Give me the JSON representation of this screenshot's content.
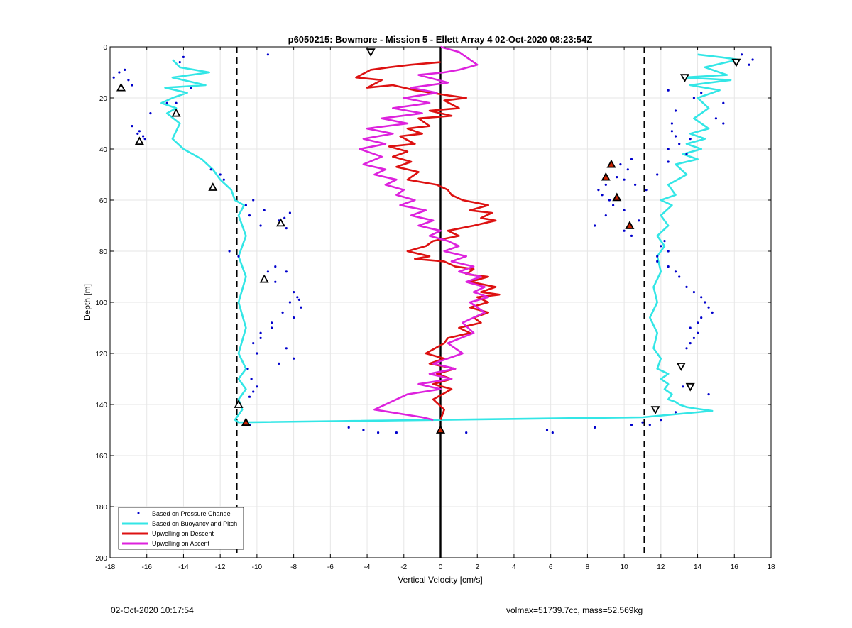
{
  "chart_data": {
    "type": "scatter",
    "title": "p6050215: Bowmore - Mission 5 - Ellett Array 4 02-Oct-2020 08:23:54Z",
    "xlabel": "Vertical Velocity [cm/s]",
    "ylabel": "Depth [m]",
    "xlim": [
      -18,
      18
    ],
    "ylim": [
      0,
      200
    ],
    "y_reversed": true,
    "xticks": [
      -18,
      -16,
      -14,
      -12,
      -10,
      -8,
      -6,
      -4,
      -2,
      0,
      2,
      4,
      6,
      8,
      10,
      12,
      14,
      16,
      18
    ],
    "yticks": [
      0,
      20,
      40,
      60,
      80,
      100,
      120,
      140,
      160,
      180,
      200
    ],
    "grid": true,
    "legend_position": "bottom-left",
    "legend": [
      "Based on Pressure Change",
      "Based on Buoyancy and Pitch",
      "Upwelling on Descent",
      "Upwelling on Ascent"
    ],
    "colors": {
      "pressure": "#0000cc",
      "buoyancy": "#33e6e6",
      "descent": "#dd1111",
      "ascent": "#dd22dd",
      "grid": "#e6e6e6"
    },
    "vlines": [
      {
        "x": -11.1,
        "style": "dashed"
      },
      {
        "x": 11.1,
        "style": "dashed"
      },
      {
        "x": 0,
        "style": "solid"
      }
    ],
    "series": [
      {
        "name": "Based on Buoyancy and Pitch",
        "style": "line",
        "x": [
          14.0,
          15.2,
          16.2,
          14.4,
          15.6,
          13.2,
          15.8,
          13.6,
          15.2,
          14.0,
          14.6,
          13.8,
          14.6,
          13.6,
          14.4,
          13.4,
          14.2,
          13.2,
          14.0,
          12.8,
          13.4,
          12.4,
          12.8,
          12.0,
          12.6,
          12.0,
          12.4,
          11.8,
          12.2,
          11.8,
          12.0,
          11.6,
          11.8,
          11.4,
          11.8,
          11.6,
          12.0,
          11.8,
          12.4,
          12.0,
          12.4,
          12.2,
          12.6,
          12.4,
          12.8,
          13.0,
          13.4,
          13.8,
          14.8,
          11.0,
          -11.0,
          -11.2,
          -10.8,
          -11.0,
          -10.6,
          -11.0,
          -10.6,
          -11.0,
          -10.6,
          -11.0,
          -10.6,
          -11.0,
          -10.6,
          -11.0,
          -10.7,
          -11.2,
          -11.4,
          -12.0,
          -12.4,
          -13.0,
          -14.0,
          -14.6,
          -14.2,
          -14.9,
          -14.4,
          -15.2,
          -14.6,
          -13.8,
          -15.0,
          -12.8,
          -14.6,
          -12.6,
          -14.2,
          -14.6
        ],
        "y": [
          3,
          4,
          5,
          8,
          11,
          12,
          13,
          15,
          17,
          20,
          24,
          28,
          32,
          34,
          36,
          38,
          40,
          42,
          44,
          46,
          50,
          54,
          58,
          60,
          62,
          66,
          70,
          74,
          78,
          82,
          88,
          94,
          100,
          106,
          112,
          118,
          122,
          126,
          128,
          130,
          132,
          134,
          136,
          138,
          139,
          140,
          141,
          141.5,
          142.5,
          145,
          147,
          146,
          142,
          138,
          134,
          130,
          126,
          120,
          110,
          100,
          90,
          82,
          74,
          66,
          62,
          60,
          56,
          52,
          48,
          44,
          40,
          36,
          30,
          26,
          24,
          22,
          20,
          18,
          16,
          15,
          12,
          10,
          8,
          5
        ]
      },
      {
        "name": "Upwelling on Descent",
        "style": "line",
        "x": [
          0.0,
          -1.6,
          -2.8,
          -3.8,
          -4.6,
          -3.2,
          -4.0,
          -2.6,
          -1.4,
          0.4,
          1.4,
          0.2,
          1.0,
          -0.6,
          0.6,
          -1.2,
          -0.6,
          -1.8,
          -1.0,
          -2.2,
          -1.4,
          -2.8,
          -1.8,
          -2.6,
          -1.6,
          -2.4,
          -1.2,
          -1.8,
          -0.2,
          0.4,
          0.6,
          1.2,
          2.6,
          1.6,
          2.8,
          2.2,
          3.0,
          1.8,
          0.4,
          1.0,
          -0.4,
          -0.8,
          -1.8,
          -0.6,
          -1.4,
          0.2,
          0.8,
          1.8,
          1.4,
          2.6,
          1.6,
          3.0,
          2.2,
          3.2,
          2.0,
          2.6,
          1.6,
          2.6,
          1.8,
          2.2,
          1.0,
          1.6,
          0.4,
          0.2,
          -0.8,
          0.2,
          -0.6,
          0.8,
          -0.2,
          0.6,
          -0.4,
          0.6,
          -0.4,
          0.2,
          0.0
        ],
        "y": [
          6,
          7,
          8,
          9,
          12,
          13,
          16,
          15,
          17,
          19,
          20,
          21,
          24,
          25,
          27,
          28,
          31,
          32,
          34,
          35,
          38,
          39,
          41,
          43,
          45,
          47,
          49,
          52,
          54,
          56,
          58,
          60,
          62,
          64,
          65,
          67,
          68,
          70,
          72,
          74,
          76,
          78,
          80,
          82,
          83,
          84,
          86,
          87,
          89,
          90,
          92,
          94,
          96,
          97,
          98,
          100,
          102,
          104,
          106,
          108,
          110,
          112,
          114,
          116,
          120,
          122,
          124,
          126,
          128,
          130,
          132,
          134,
          138,
          142,
          146
        ]
      },
      {
        "name": "Upwelling on Ascent",
        "style": "line",
        "x": [
          0.0,
          1.0,
          2.0,
          1.0,
          0.2,
          -1.2,
          0.4,
          -1.6,
          -0.2,
          -2.0,
          -0.6,
          -2.6,
          -1.0,
          -3.2,
          -1.8,
          -4.0,
          -2.6,
          -4.2,
          -3.0,
          -4.4,
          -3.2,
          -4.2,
          -3.0,
          -3.6,
          -2.4,
          -3.0,
          -2.0,
          -2.4,
          -1.4,
          -2.2,
          -0.8,
          -1.6,
          -0.4,
          -1.2,
          0.0,
          -0.6,
          0.4,
          1.0,
          0.2,
          1.4,
          0.6,
          1.8,
          1.0,
          2.2,
          1.4,
          2.4,
          1.8,
          2.6,
          1.6,
          2.4,
          1.2,
          1.8,
          0.4,
          1.2,
          -0.4,
          0.8,
          -0.6,
          0.6,
          -1.2,
          0.0,
          -1.8,
          -3.6,
          -1.0,
          -0.4
        ],
        "y": [
          0,
          2,
          7,
          9,
          10,
          11,
          14,
          16,
          18,
          20,
          22,
          24,
          26,
          28,
          30,
          32,
          34,
          36,
          38,
          40,
          43,
          46,
          48,
          50,
          52,
          54,
          56,
          58,
          60,
          62,
          64,
          66,
          68,
          70,
          72,
          74,
          76,
          78,
          80,
          82,
          84,
          86,
          88,
          90,
          92,
          94,
          96,
          98,
          100,
          104,
          108,
          112,
          116,
          120,
          124,
          126,
          128,
          130,
          132,
          134,
          136,
          142,
          145,
          146
        ]
      },
      {
        "name": "Based on Pressure Change",
        "style": "points",
        "x": [
          -17.8,
          -17.5,
          -17.2,
          -16.8,
          -16.4,
          -16.2,
          -15.8,
          -14.2,
          -14.0,
          -13.6,
          -16.1,
          -16.5,
          -14.9,
          -10.2,
          -10.6,
          -10.4,
          -9.6,
          -9.8,
          -8.8,
          -8.5,
          -8.2,
          -8.4,
          -9.0,
          -9.4,
          -9.6,
          -9.0,
          -8.4,
          -8.0,
          -7.8,
          -8.2,
          -8.6,
          -9.2,
          -9.8,
          -10.2,
          -10.5,
          -10.3,
          -9.2,
          -8.0,
          -7.6,
          -7.7,
          -8.4,
          -8.0,
          -8.8,
          -9.8,
          -10.0,
          -10.2,
          -10.4,
          -10.0,
          -11.5,
          -11.0,
          -12.5,
          -12.0,
          -11.8,
          -10.4,
          -5.0,
          -4.2,
          -3.4,
          -2.4,
          1.4,
          5.8,
          6.1,
          8.4,
          10.4,
          11.0,
          12.8,
          13.2,
          14.6,
          15.4,
          16.8,
          17.0,
          16.4,
          14.2,
          13.8,
          12.4,
          12.8,
          12.6,
          12.4,
          13.0,
          13.6,
          15.0,
          15.4,
          13.4,
          12.6,
          12.4,
          12.8,
          12.2,
          11.8,
          12.4,
          12.8,
          13.0,
          13.4,
          13.8,
          14.2,
          14.4,
          14.6,
          14.8,
          14.2,
          14.0,
          13.6,
          14.0,
          13.8,
          13.6,
          13.4,
          12.4,
          12.0,
          11.8,
          10.4,
          10.2,
          9.8,
          10.0,
          9.6,
          9.0,
          8.6,
          8.8,
          9.2,
          10.0,
          9.4,
          9.0,
          8.4,
          10.0,
          10.4,
          10.8,
          11.2,
          10.6,
          11.8,
          11.4,
          12.0,
          -14.4,
          -16.8,
          -17.0,
          -9.4,
          -3.8
        ],
        "y": [
          12,
          10,
          9,
          31,
          33,
          35,
          26,
          6,
          4,
          16,
          36,
          34,
          22,
          60,
          62,
          66,
          64,
          70,
          68,
          67,
          65,
          71,
          86,
          88,
          90,
          92,
          88,
          96,
          98,
          100,
          104,
          108,
          112,
          116,
          126,
          130,
          110,
          106,
          102,
          99,
          118,
          122,
          124,
          114,
          120,
          135,
          137,
          133,
          80,
          82,
          48,
          50,
          52,
          148,
          149,
          150,
          151,
          151,
          151,
          150,
          151,
          149,
          148,
          147,
          143,
          133,
          136,
          22,
          7,
          5,
          3,
          18,
          20,
          17,
          25,
          30,
          40,
          38,
          36,
          28,
          30,
          42,
          33,
          45,
          35,
          76,
          84,
          86,
          88,
          90,
          94,
          96,
          98,
          100,
          102,
          104,
          106,
          108,
          110,
          112,
          114,
          116,
          118,
          80,
          78,
          82,
          44,
          48,
          46,
          52,
          51,
          54,
          56,
          58,
          60,
          64,
          62,
          66,
          70,
          72,
          74,
          68,
          56,
          54,
          50,
          148,
          146,
          22,
          15,
          13,
          3,
          2
        ]
      }
    ],
    "markers": {
      "descent_up_triangles_outline": [
        {
          "x": -17.4,
          "y": 16
        },
        {
          "x": -16.4,
          "y": 37
        },
        {
          "x": -14.4,
          "y": 26
        },
        {
          "x": -12.4,
          "y": 55
        },
        {
          "x": -8.7,
          "y": 69
        },
        {
          "x": -9.6,
          "y": 91
        },
        {
          "x": -11.0,
          "y": 140
        }
      ],
      "ascent_down_triangles_outline": [
        {
          "x": -3.8,
          "y": 2
        },
        {
          "x": 16.1,
          "y": 6
        },
        {
          "x": 13.3,
          "y": 12
        },
        {
          "x": 13.1,
          "y": 125
        },
        {
          "x": 13.6,
          "y": 133
        },
        {
          "x": 11.7,
          "y": 142
        }
      ],
      "filled_red_triangles": [
        {
          "x": 9.3,
          "y": 46
        },
        {
          "x": 9.0,
          "y": 51
        },
        {
          "x": 9.6,
          "y": 59
        },
        {
          "x": 10.3,
          "y": 70
        },
        {
          "x": -10.6,
          "y": 147
        },
        {
          "x": 0.0,
          "y": 150
        }
      ]
    }
  },
  "footer": {
    "timestamp": "02-Oct-2020 10:17:54",
    "params": "volmax=51739.7cc, mass=52.569kg"
  }
}
